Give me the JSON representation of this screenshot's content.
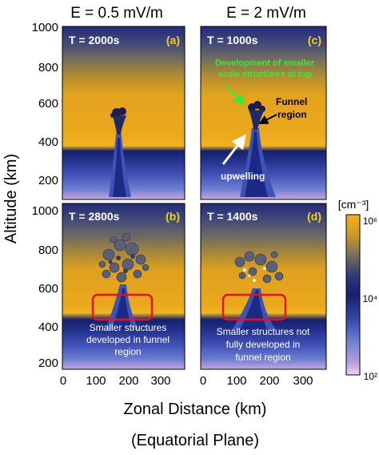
{
  "col_titles": [
    "E = 0.5 mV/m",
    "E = 2 mV/m"
  ],
  "y_axis": {
    "label": "Altitude (km)",
    "ticks_top": [
      "1000",
      "800",
      "600",
      "400",
      "200"
    ],
    "ticks_bottom": [
      "1000",
      "800",
      "600",
      "400",
      "200"
    ]
  },
  "x_axis": {
    "label_line1": "Zonal Distance (km)",
    "label_line2": "(Equatorial Plane)",
    "ticks_left": [
      "0",
      "100",
      "200",
      "300"
    ],
    "ticks_right": [
      "0",
      "100",
      "200",
      "300"
    ]
  },
  "panels": {
    "a": {
      "time": "T = 2000s",
      "letter": "(a)"
    },
    "b": {
      "time": "T = 2800s",
      "letter": "(b)",
      "caption": [
        "Smaller structures",
        "developed in funnel",
        "region"
      ]
    },
    "c": {
      "time": "T = 1000s",
      "letter": "(c)",
      "green_note": [
        "Development of smaller",
        "scale structures at top"
      ],
      "funnel_note": [
        "Funnel",
        "region"
      ],
      "upwelling_note": "upwelling"
    },
    "d": {
      "time": "T = 1400s",
      "letter": "(d)",
      "caption": [
        "Smaller structures not",
        "fully developed in",
        "funnel region"
      ]
    }
  },
  "colorbar": {
    "unit": "[cm⁻³]",
    "label_top": "10⁶",
    "label_mid": "10⁴",
    "label_bottom": "10²"
  },
  "colors": {
    "gold": "#e6a31c",
    "navy": "#16206b",
    "blue": "#3c4cb0",
    "light_purple": "#cfa9e0",
    "letter_yellow": "#f2d21a",
    "green": "#3ee63a",
    "red": "#e8121b"
  }
}
